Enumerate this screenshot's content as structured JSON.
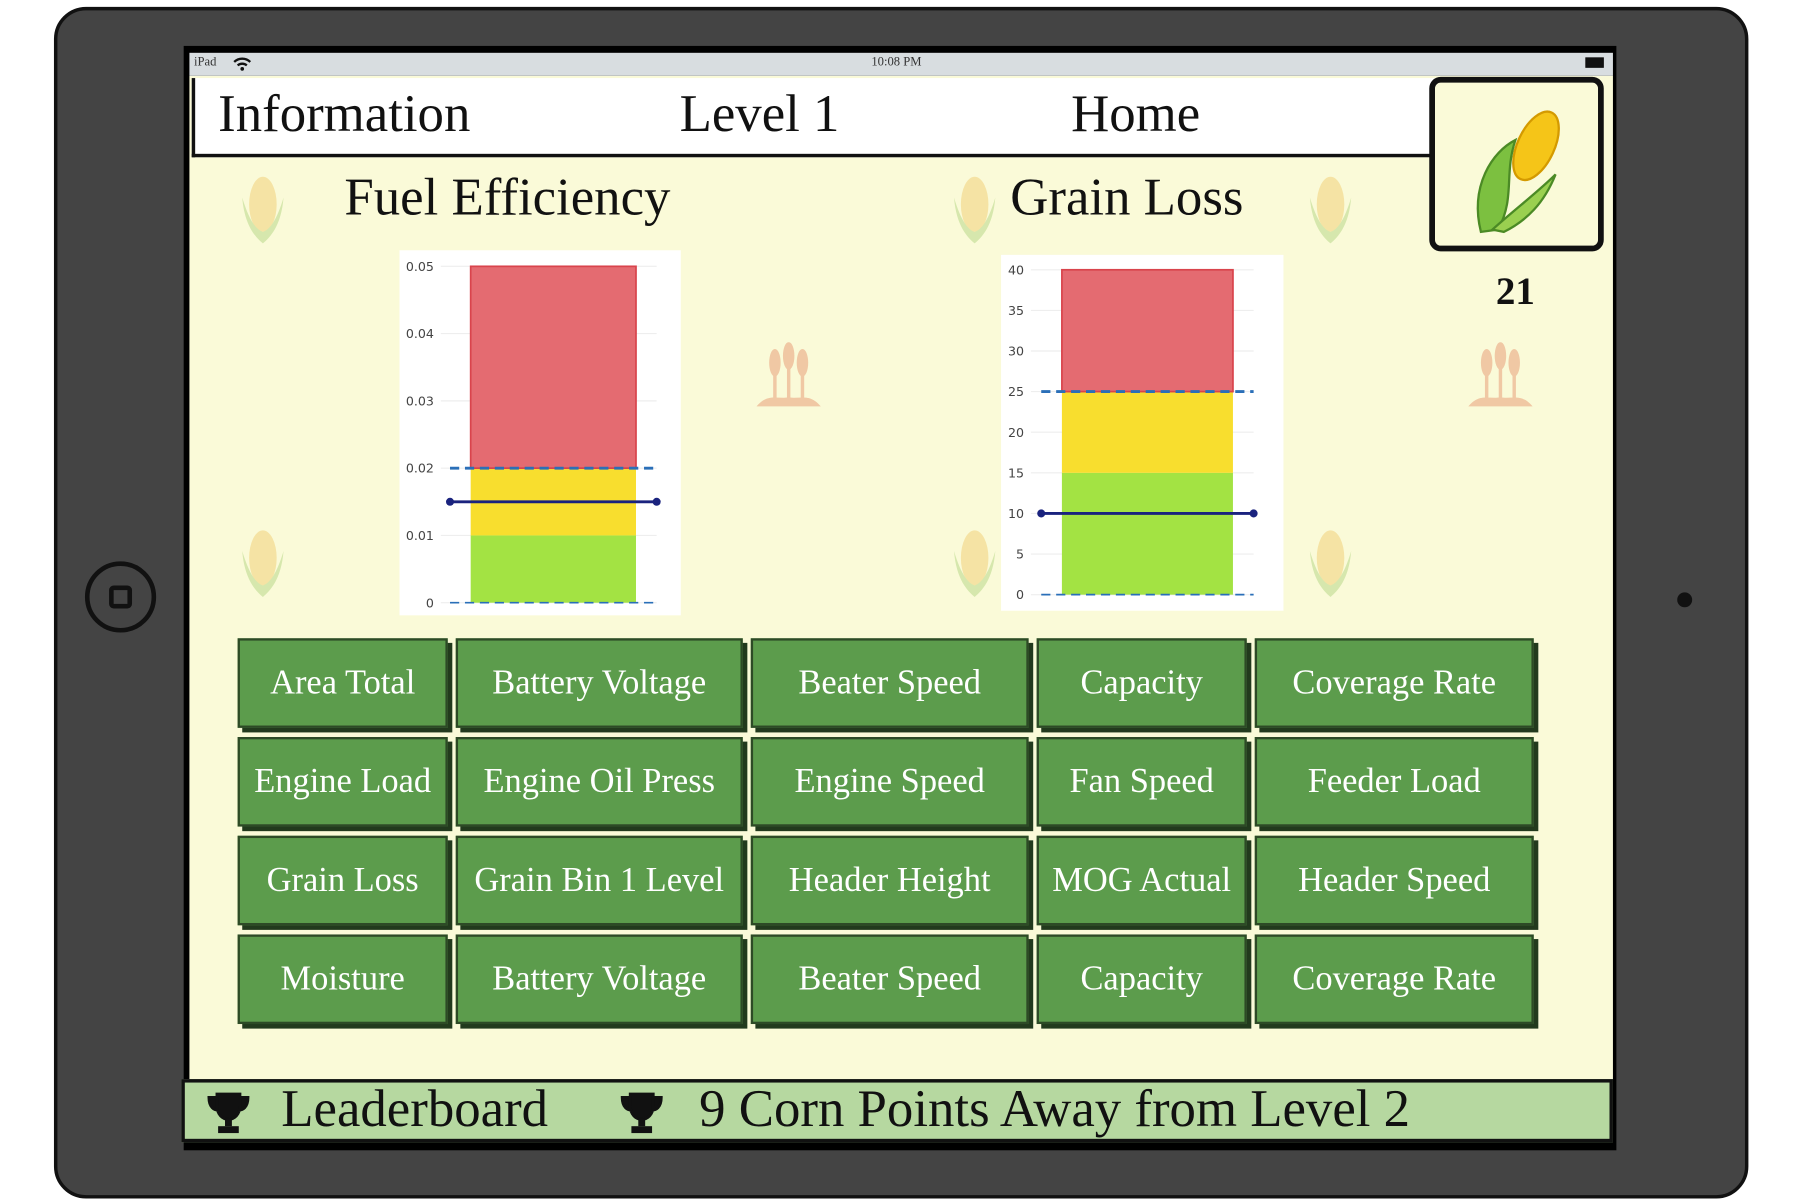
{
  "status_bar": {
    "device": "iPad",
    "time": "10:08 PM"
  },
  "nav": {
    "information": "Information",
    "level": "Level 1",
    "home": "Home"
  },
  "score": "21",
  "fuel_title": "Fuel Efficiency",
  "grain_title": "Grain Loss",
  "chart_data": [
    {
      "type": "bar",
      "title": "Fuel Efficiency",
      "ylim": [
        0,
        0.05
      ],
      "yticks": [
        "0",
        "0.01",
        "0.02",
        "0.03",
        "0.04",
        "0.05"
      ],
      "ytick_values": [
        0,
        0.01,
        0.02,
        0.03,
        0.04,
        0.05
      ],
      "bands": [
        {
          "name": "green",
          "from": 0,
          "to": 0.01,
          "color": "#a3e343"
        },
        {
          "name": "yellow",
          "from": 0.01,
          "to": 0.02,
          "color": "#f8de2e"
        },
        {
          "name": "red",
          "from": 0.02,
          "to": 0.05,
          "color": "#e46b71"
        }
      ],
      "threshold": 0.02,
      "current": 0.015
    },
    {
      "type": "bar",
      "title": "Grain Loss",
      "ylim": [
        0,
        40
      ],
      "yticks": [
        "0",
        "5",
        "10",
        "15",
        "20",
        "25",
        "30",
        "35",
        "40"
      ],
      "ytick_values": [
        0,
        5,
        10,
        15,
        20,
        25,
        30,
        35,
        40
      ],
      "bands": [
        {
          "name": "green",
          "from": 0,
          "to": 15,
          "color": "#a3e343"
        },
        {
          "name": "yellow",
          "from": 15,
          "to": 25,
          "color": "#f8de2e"
        },
        {
          "name": "red",
          "from": 25,
          "to": 40,
          "color": "#e46b71"
        }
      ],
      "threshold": 25,
      "current": 10
    }
  ],
  "buttons": [
    "Area Total",
    "Battery Voltage",
    "Beater Speed",
    "Capacity",
    "Coverage Rate",
    "Engine Load",
    "Engine Oil Press",
    "Engine Speed",
    "Fan Speed",
    "Feeder Load",
    "Grain Loss",
    "Grain Bin 1 Level",
    "Header Height",
    "MOG Actual",
    "Header Speed",
    "Moisture",
    "Battery Voltage",
    "Beater Speed",
    "Capacity",
    "Coverage Rate"
  ],
  "bottom": {
    "leaderboard": "Leaderboard",
    "progress": "9 Corn Points Away from Level 2"
  }
}
